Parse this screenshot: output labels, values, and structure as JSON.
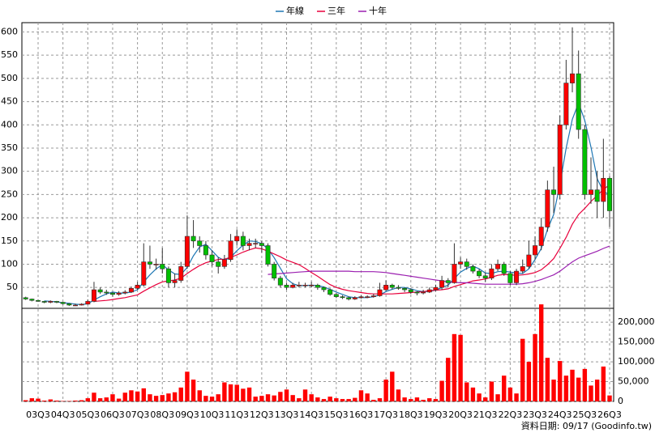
{
  "chart_data": {
    "type": "candlestick",
    "categories": [
      null,
      null,
      "03Q3",
      null,
      null,
      null,
      "04Q3",
      null,
      null,
      null,
      "05Q3",
      null,
      null,
      null,
      "06Q3",
      null,
      null,
      null,
      "07Q3",
      null,
      null,
      null,
      "08Q3",
      null,
      null,
      null,
      "09Q3",
      null,
      null,
      null,
      "10Q3",
      null,
      null,
      null,
      "11Q3",
      null,
      null,
      null,
      "12Q3",
      null,
      null,
      null,
      "13Q3",
      null,
      null,
      null,
      "14Q3",
      null,
      null,
      null,
      "15Q3",
      null,
      null,
      null,
      "16Q3",
      null,
      null,
      null,
      "17Q3",
      null,
      null,
      null,
      "18Q3",
      null,
      null,
      null,
      "19Q3",
      null,
      null,
      null,
      "20Q3",
      null,
      null,
      null,
      "21Q3",
      null,
      null,
      null,
      "22Q3",
      null,
      null,
      null,
      "23Q3",
      null,
      null,
      null,
      "24Q3",
      null,
      null,
      null,
      "25Q3",
      null,
      null,
      null,
      "26Q3"
    ],
    "ohlc": [
      [
        28,
        30,
        23,
        25
      ],
      [
        25,
        26,
        20,
        22
      ],
      [
        22,
        24,
        19,
        20
      ],
      [
        20,
        21,
        16,
        18
      ],
      [
        18,
        22,
        16,
        20
      ],
      [
        20,
        21,
        16,
        18
      ],
      [
        18,
        19,
        13,
        15
      ],
      [
        15,
        16,
        10,
        12
      ],
      [
        12,
        15,
        10,
        12
      ],
      [
        12,
        16,
        11,
        14
      ],
      [
        14,
        24,
        13,
        20
      ],
      [
        20,
        62,
        18,
        45
      ],
      [
        45,
        50,
        36,
        40
      ],
      [
        40,
        45,
        34,
        38
      ],
      [
        38,
        40,
        30,
        35
      ],
      [
        35,
        42,
        32,
        38
      ],
      [
        38,
        44,
        35,
        40
      ],
      [
        40,
        52,
        38,
        48
      ],
      [
        48,
        62,
        45,
        55
      ],
      [
        55,
        145,
        52,
        105
      ],
      [
        105,
        140,
        90,
        100
      ],
      [
        100,
        112,
        88,
        100
      ],
      [
        100,
        135,
        80,
        90
      ],
      [
        90,
        95,
        50,
        60
      ],
      [
        60,
        80,
        50,
        65
      ],
      [
        65,
        105,
        60,
        95
      ],
      [
        95,
        205,
        90,
        160
      ],
      [
        160,
        195,
        135,
        150
      ],
      [
        150,
        160,
        125,
        140
      ],
      [
        140,
        150,
        110,
        120
      ],
      [
        120,
        130,
        95,
        105
      ],
      [
        105,
        115,
        80,
        95
      ],
      [
        95,
        120,
        90,
        110
      ],
      [
        110,
        165,
        105,
        150
      ],
      [
        150,
        175,
        140,
        160
      ],
      [
        160,
        170,
        130,
        140
      ],
      [
        140,
        155,
        130,
        145
      ],
      [
        145,
        155,
        135,
        145
      ],
      [
        145,
        150,
        125,
        140
      ],
      [
        140,
        145,
        95,
        100
      ],
      [
        100,
        105,
        65,
        70
      ],
      [
        70,
        75,
        50,
        55
      ],
      [
        55,
        60,
        45,
        50
      ],
      [
        50,
        60,
        48,
        55
      ],
      [
        55,
        62,
        50,
        55
      ],
      [
        55,
        60,
        50,
        55
      ],
      [
        55,
        62,
        50,
        55
      ],
      [
        55,
        58,
        45,
        50
      ],
      [
        50,
        52,
        40,
        45
      ],
      [
        45,
        48,
        32,
        35
      ],
      [
        35,
        38,
        27,
        30
      ],
      [
        30,
        33,
        25,
        28
      ],
      [
        28,
        30,
        22,
        25
      ],
      [
        25,
        31,
        23,
        28
      ],
      [
        28,
        33,
        26,
        30
      ],
      [
        30,
        33,
        27,
        30
      ],
      [
        30,
        36,
        28,
        32
      ],
      [
        32,
        60,
        30,
        45
      ],
      [
        45,
        65,
        42,
        55
      ],
      [
        55,
        58,
        46,
        50
      ],
      [
        50,
        55,
        45,
        48
      ],
      [
        48,
        50,
        40,
        45
      ],
      [
        45,
        48,
        36,
        40
      ],
      [
        40,
        42,
        33,
        38
      ],
      [
        38,
        45,
        35,
        40
      ],
      [
        40,
        50,
        38,
        45
      ],
      [
        45,
        56,
        42,
        50
      ],
      [
        50,
        75,
        45,
        65
      ],
      [
        65,
        70,
        50,
        60
      ],
      [
        60,
        145,
        58,
        100
      ],
      [
        100,
        115,
        90,
        105
      ],
      [
        105,
        112,
        88,
        95
      ],
      [
        95,
        100,
        80,
        85
      ],
      [
        85,
        90,
        70,
        75
      ],
      [
        75,
        82,
        62,
        70
      ],
      [
        70,
        100,
        66,
        90
      ],
      [
        90,
        110,
        85,
        100
      ],
      [
        100,
        105,
        75,
        80
      ],
      [
        80,
        85,
        55,
        60
      ],
      [
        60,
        90,
        55,
        85
      ],
      [
        85,
        110,
        80,
        95
      ],
      [
        95,
        150,
        90,
        120
      ],
      [
        120,
        160,
        110,
        140
      ],
      [
        140,
        200,
        130,
        180
      ],
      [
        180,
        280,
        170,
        260
      ],
      [
        260,
        310,
        210,
        250
      ],
      [
        250,
        420,
        240,
        400
      ],
      [
        400,
        540,
        390,
        490
      ],
      [
        490,
        610,
        470,
        510
      ],
      [
        510,
        560,
        370,
        390
      ],
      [
        390,
        400,
        240,
        250
      ],
      [
        250,
        330,
        230,
        260
      ],
      [
        260,
        300,
        200,
        235
      ],
      [
        235,
        370,
        200,
        285
      ],
      [
        285,
        290,
        180,
        215
      ]
    ],
    "volume": [
      3000,
      8000,
      7000,
      2000,
      5000,
      2000,
      1000,
      1000,
      2000,
      3000,
      8000,
      22000,
      8000,
      10000,
      18000,
      7000,
      22000,
      28000,
      25000,
      33000,
      18000,
      14000,
      16000,
      20000,
      23000,
      35000,
      75000,
      55000,
      28000,
      14000,
      12000,
      18000,
      48000,
      43000,
      42000,
      32000,
      35000,
      12000,
      14000,
      18000,
      15000,
      24000,
      30000,
      16000,
      8000,
      30000,
      18000,
      10000,
      6000,
      12000,
      8000,
      6000,
      6000,
      9000,
      28000,
      20000,
      4000,
      8000,
      55000,
      75000,
      30000,
      10000,
      6000,
      10000,
      4000,
      8000,
      6000,
      52000,
      110000,
      170000,
      168000,
      48000,
      35000,
      20000,
      10000,
      50000,
      18000,
      65000,
      35000,
      20000,
      158000,
      100000,
      170000,
      245000,
      110000,
      55000,
      102000,
      65000,
      80000,
      60000,
      82000,
      40000,
      55000,
      88000,
      15000
    ],
    "series": [
      {
        "name": "年線",
        "color": "#1f77b4",
        "values": [
          null,
          null,
          null,
          21,
          20,
          19,
          17,
          16,
          14,
          13,
          15,
          23,
          30,
          36,
          40,
          38,
          38,
          40,
          45,
          62,
          77,
          90,
          99,
          88,
          79,
          78,
          93,
          118,
          137,
          143,
          129,
          115,
          108,
          115,
          129,
          141,
          150,
          149,
          144,
          133,
          114,
          91,
          69,
          58,
          54,
          54,
          55,
          54,
          51,
          46,
          40,
          35,
          30,
          28,
          28,
          28,
          30,
          34,
          41,
          46,
          50,
          50,
          47,
          43,
          41,
          41,
          44,
          50,
          55,
          69,
          83,
          91,
          96,
          90,
          81,
          80,
          84,
          85,
          83,
          81,
          80,
          90,
          110,
          134,
          175,
          207,
          272,
          350,
          412,
          447,
          410,
          352,
          284,
          257,
          249
        ]
      },
      {
        "name": "三年",
        "color": "#e8003c",
        "values": [
          null,
          null,
          null,
          null,
          null,
          null,
          null,
          null,
          null,
          null,
          null,
          20,
          21,
          22,
          24,
          26,
          28,
          31,
          34,
          42,
          49,
          56,
          62,
          64,
          66,
          70,
          80,
          89,
          97,
          103,
          107,
          110,
          111,
          115,
          120,
          126,
          131,
          135,
          133,
          128,
          122,
          116,
          109,
          104,
          99,
          91,
          82,
          74,
          65,
          56,
          50,
          46,
          43,
          41,
          39,
          37,
          36,
          36,
          36,
          36,
          37,
          38,
          39,
          40,
          41,
          43,
          44,
          45,
          47,
          52,
          56,
          60,
          64,
          66,
          68,
          72,
          76,
          78,
          77,
          76,
          77,
          79,
          82,
          88,
          99,
          112,
          134,
          158,
          186,
          207,
          220,
          235,
          248,
          261,
          271
        ]
      },
      {
        "name": "十年",
        "color": "#9b1fb0",
        "values": [
          null,
          null,
          null,
          null,
          null,
          null,
          null,
          null,
          null,
          null,
          null,
          null,
          null,
          null,
          null,
          null,
          null,
          null,
          null,
          null,
          null,
          null,
          null,
          null,
          null,
          null,
          null,
          null,
          null,
          null,
          null,
          null,
          null,
          null,
          null,
          null,
          null,
          null,
          null,
          78,
          79,
          80,
          81,
          82,
          83,
          84,
          85,
          85,
          85,
          85,
          85,
          85,
          85,
          84,
          84,
          84,
          84,
          83,
          82,
          80,
          78,
          76,
          74,
          72,
          70,
          68,
          66,
          64,
          62,
          61,
          60,
          60,
          59,
          58,
          57,
          57,
          57,
          57,
          57,
          57,
          58,
          60,
          63,
          67,
          72,
          77,
          85,
          95,
          105,
          113,
          118,
          123,
          128,
          134,
          139
        ]
      }
    ],
    "up_color": "#ff0000",
    "down_color": "#00c000",
    "volume_color": "#ff0000",
    "ylim": [
      5,
      620
    ],
    "yticks": [
      50,
      100,
      150,
      200,
      250,
      300,
      350,
      400,
      450,
      500,
      550,
      600
    ],
    "y2lim": [
      0,
      235000
    ],
    "y2ticks": [
      0,
      {
        "value": 50000,
        "label": "50,000"
      },
      {
        "value": 100000,
        "label": "100,000"
      },
      {
        "value": 150000,
        "label": "150,000"
      },
      {
        "value": 200000,
        "label": "200,000"
      }
    ],
    "grid": true,
    "source": "資料日期: 09/17  (Goodinfo.tw)"
  }
}
